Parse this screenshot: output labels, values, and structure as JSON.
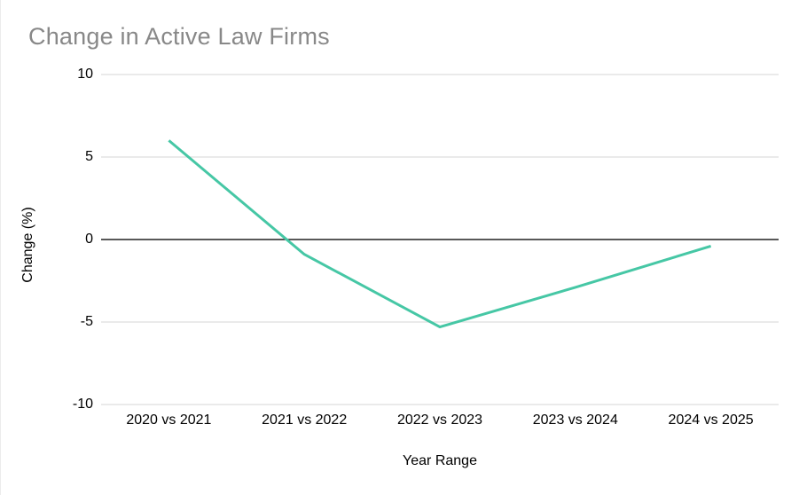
{
  "chart_data": {
    "type": "line",
    "title": "Change in Active Law Firms",
    "xlabel": "Year Range",
    "ylabel": "Change (%)",
    "categories": [
      "2020 vs 2021",
      "2021 vs 2022",
      "2022 vs 2023",
      "2023 vs 2024",
      "2024 vs 2025"
    ],
    "series": [
      {
        "name": "Change (%)",
        "values": [
          6,
          -0.9,
          -5.3,
          -2.9,
          -0.4
        ]
      }
    ],
    "ylim": [
      -10,
      10
    ],
    "yticks": [
      10,
      5,
      0,
      -5,
      -10
    ],
    "grid": true,
    "legend": "none",
    "colors": {
      "line": "#46c7a5",
      "gridline": "#e3e3e3",
      "zero_axis": "#212121",
      "title_text": "#888888",
      "axis_text": "#000000",
      "background": "#ffffff"
    }
  }
}
